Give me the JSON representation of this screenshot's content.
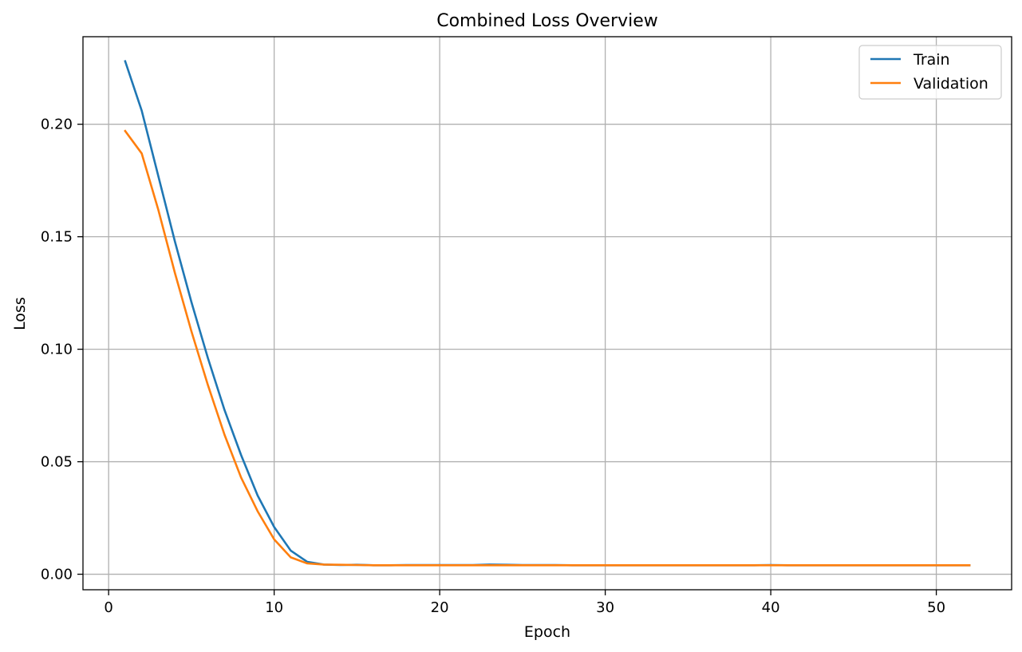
{
  "chart_data": {
    "type": "line",
    "title": "Combined Loss Overview",
    "xlabel": "Epoch",
    "ylabel": "Loss",
    "xlim": [
      -1.55,
      54.55
    ],
    "ylim": [
      -0.0069,
      0.2389
    ],
    "xticks": [
      0,
      10,
      20,
      30,
      40,
      50
    ],
    "yticks": [
      0.0,
      0.05,
      0.1,
      0.15,
      0.2
    ],
    "ytick_labels": [
      "0.00",
      "0.05",
      "0.10",
      "0.15",
      "0.20"
    ],
    "grid": true,
    "legend_position": "top-right",
    "x": [
      1,
      2,
      3,
      4,
      5,
      6,
      7,
      8,
      9,
      10,
      11,
      12,
      13,
      14,
      15,
      16,
      17,
      18,
      19,
      20,
      21,
      22,
      23,
      24,
      25,
      26,
      27,
      28,
      29,
      30,
      31,
      32,
      33,
      34,
      35,
      36,
      37,
      38,
      39,
      40,
      41,
      42,
      43,
      44,
      45,
      46,
      47,
      48,
      49,
      50,
      51,
      52
    ],
    "series": [
      {
        "name": "Train",
        "color": "#1f77b4",
        "values": [
          0.228,
          0.206,
          0.177,
          0.148,
          0.121,
          0.096,
          0.073,
          0.053,
          0.035,
          0.021,
          0.0105,
          0.0055,
          0.0043,
          0.0041,
          0.0042,
          0.004,
          0.004,
          0.0041,
          0.0041,
          0.0041,
          0.0041,
          0.0041,
          0.0043,
          0.0042,
          0.0041,
          0.0041,
          0.0041,
          0.004,
          0.004,
          0.004,
          0.004,
          0.004,
          0.004,
          0.004,
          0.004,
          0.004,
          0.004,
          0.004,
          0.004,
          0.0041,
          0.004,
          0.004,
          0.004,
          0.004,
          0.004,
          0.004,
          0.004,
          0.004,
          0.004,
          0.004,
          0.004,
          0.004
        ]
      },
      {
        "name": "Validation",
        "color": "#ff7f0e",
        "values": [
          0.197,
          0.187,
          0.162,
          0.134,
          0.108,
          0.084,
          0.062,
          0.043,
          0.028,
          0.0155,
          0.0075,
          0.0048,
          0.0043,
          0.0042,
          0.0041,
          0.004,
          0.004,
          0.004,
          0.004,
          0.004,
          0.004,
          0.004,
          0.004,
          0.004,
          0.004,
          0.004,
          0.004,
          0.004,
          0.004,
          0.004,
          0.004,
          0.004,
          0.004,
          0.004,
          0.004,
          0.004,
          0.004,
          0.004,
          0.004,
          0.004,
          0.004,
          0.004,
          0.004,
          0.004,
          0.004,
          0.004,
          0.004,
          0.004,
          0.004,
          0.004,
          0.004,
          0.004
        ]
      }
    ]
  }
}
